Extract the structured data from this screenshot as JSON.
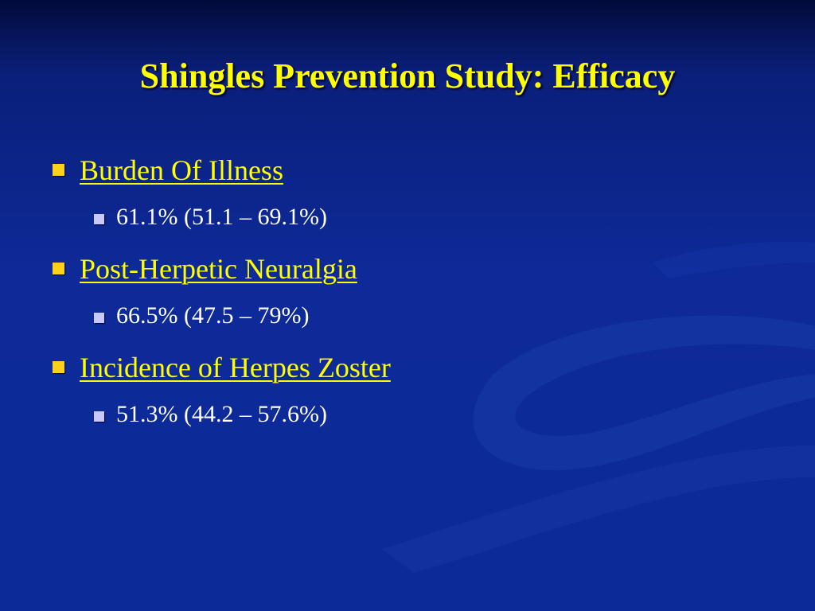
{
  "slide": {
    "title": "Shingles Prevention Study: Efficacy",
    "items": [
      {
        "heading": "Burden Of Illness",
        "detail": "61.1% (51.1 – 69.1%)"
      },
      {
        "heading": "Post-Herpetic Neuralgia",
        "detail": "66.5% (47.5 – 79%)"
      },
      {
        "heading": "Incidence of Herpes Zoster",
        "detail": "51.3% (44.2 – 57.6%)"
      }
    ]
  },
  "colors": {
    "background": "#0d2a98",
    "title": "#ffff00",
    "heading": "#ffff00",
    "heading_bullet": "#ffd21a",
    "detail": "#ffffff",
    "detail_bullet": "#c8c8ff"
  }
}
